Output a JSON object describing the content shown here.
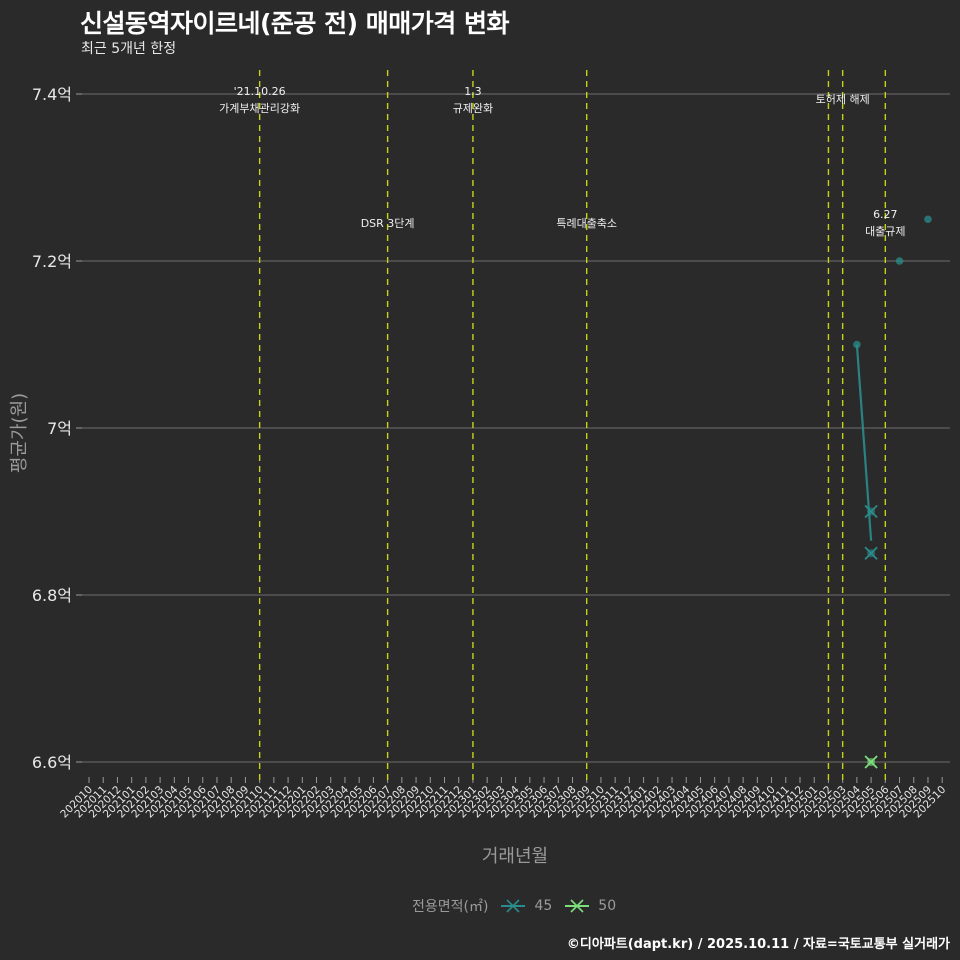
{
  "header": {
    "title": "신설동역자이르네(준공 전) 매매가격 변화",
    "subtitle": "최근 5개년 한정"
  },
  "axes": {
    "x_title": "거래년월",
    "y_title": "평균가(원)"
  },
  "legend": {
    "title": "전용면적(㎡)",
    "items": [
      {
        "label": "45",
        "color": "#2a8c8c"
      },
      {
        "label": "50",
        "color": "#7be07b"
      }
    ]
  },
  "caption": "©디아파트(dapt.kr) / 2025.10.11 / 자료=국토교통부 실거래가",
  "chart_data": {
    "type": "line",
    "title": "신설동역자이르네(준공 전) 매매가격 변화",
    "subtitle": "최근 5개년 한정",
    "xlabel": "거래년월",
    "ylabel": "평균가(원)",
    "ylim": [
      6.55,
      7.43
    ],
    "y_ticks": [
      {
        "value": 6.6,
        "label": "6.6억"
      },
      {
        "value": 6.8,
        "label": "6.8억"
      },
      {
        "value": 7.0,
        "label": "7억"
      },
      {
        "value": 7.2,
        "label": "7.2억"
      },
      {
        "value": 7.4,
        "label": "7.4억"
      }
    ],
    "categories": [
      "202010",
      "202011",
      "202012",
      "202101",
      "202102",
      "202103",
      "202104",
      "202105",
      "202106",
      "202107",
      "202108",
      "202109",
      "202110",
      "202111",
      "202112",
      "202201",
      "202202",
      "202203",
      "202204",
      "202205",
      "202206",
      "202207",
      "202208",
      "202209",
      "202210",
      "202211",
      "202212",
      "202301",
      "202302",
      "202303",
      "202304",
      "202305",
      "202306",
      "202307",
      "202308",
      "202309",
      "202310",
      "202311",
      "202312",
      "202401",
      "202402",
      "202403",
      "202404",
      "202405",
      "202406",
      "202407",
      "202408",
      "202409",
      "202410",
      "202411",
      "202412",
      "202501",
      "202502",
      "202503",
      "202504",
      "202505",
      "202506",
      "202507",
      "202508",
      "202509",
      "202510"
    ],
    "series": [
      {
        "name": "45",
        "color": "#2a8c8c",
        "trend_line": [
          {
            "x": "202504",
            "y": 7.1
          },
          {
            "x": "202505",
            "y": 6.865
          }
        ],
        "points": [
          {
            "x": "202504",
            "y": 7.1,
            "marker": "dot"
          },
          {
            "x": "202505",
            "y": 6.9,
            "marker": "x"
          },
          {
            "x": "202505",
            "y": 6.85,
            "marker": "x"
          },
          {
            "x": "202507",
            "y": 7.2,
            "marker": "dot"
          },
          {
            "x": "202509",
            "y": 7.25,
            "marker": "dot"
          }
        ]
      },
      {
        "name": "50",
        "color": "#7be07b",
        "points": [
          {
            "x": "202505",
            "y": 6.6,
            "marker": "x"
          }
        ]
      }
    ],
    "annotations": [
      {
        "x": "202110",
        "line1": "'21.10.26",
        "line2": "가계부채관리강화",
        "pos": "top"
      },
      {
        "x": "202207",
        "line1": "",
        "line2": "DSR 3단계",
        "pos": "mid"
      },
      {
        "x": "202301",
        "line1": "1.3",
        "line2": "규제완화",
        "pos": "top"
      },
      {
        "x": "202309",
        "line1": "",
        "line2": "특례대출축소",
        "pos": "mid"
      },
      {
        "x": "202502",
        "line1": "",
        "line2": "",
        "pos": "none"
      },
      {
        "x": "202503",
        "line1": "",
        "line2": "토허제 해제",
        "pos": "top"
      },
      {
        "x": "202506",
        "line1": "6.27",
        "line2": "대출규제",
        "pos": "mid"
      }
    ],
    "grid": true,
    "legend_position": "bottom"
  }
}
